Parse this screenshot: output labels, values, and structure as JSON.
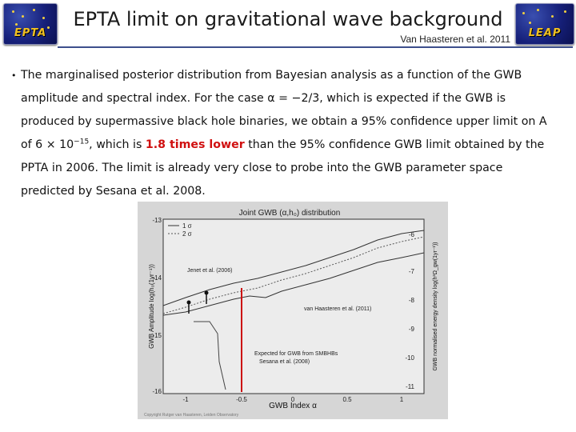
{
  "header": {
    "title": "EPTA limit on gravitational wave background",
    "byline": "Van Haasteren et al. 2011",
    "left_logo": "EPTA",
    "right_logo": "LEAP"
  },
  "body": {
    "bullet": "•",
    "text_a": "The marginalised posterior distribution from Bayesian analysis as a function of the GWB amplitude and spectral index. For the case α = −2/3, which is expected if the GWB is produced by supermassive black hole binaries, we obtain a 95% confidence upper limit on A of 6 × 10",
    "exp": "−15",
    "text_b": ", which is ",
    "highlight": "1.8 times lower",
    "text_c": " than the 95% confidence GWB limit obtained by the PPTA in 2006. The limit is already very close to probe into the GWB parameter space predicted by Sesana et al. 2008."
  },
  "figure": {
    "title": "Joint GWB (α,h₀) distribution",
    "legend": [
      "1 σ",
      "2 σ"
    ],
    "xlabel": "GWB Index α",
    "ylabel_left": "GWB Amplitude  log(h₀(1yr⁻¹))",
    "ylabel_right": "GWB normalised energy density  log(h²Ω_gw(1yr⁻¹))",
    "xticks": [
      "-1",
      "-0.5",
      "0",
      "0.5",
      "1"
    ],
    "yticks_left": [
      "-13",
      "-14",
      "-15",
      "-16"
    ],
    "yticks_right": [
      "-6",
      "-7",
      "-8",
      "-9",
      "-10",
      "-11"
    ],
    "ann_jenet": "Jenet et al. (2006)",
    "ann_vh": "van Haasteren et al. (2011)",
    "ann_exp_1": "Expected for GWB from SMBHBs",
    "ann_exp_2": "Sesana et al. (2008)",
    "copyright": "Copyright Rutger van Haasteren, Leiden Observatory",
    "colors": {
      "expected_line": "#cc1111",
      "curve": "#333333",
      "background": "#d6d6d6"
    }
  }
}
